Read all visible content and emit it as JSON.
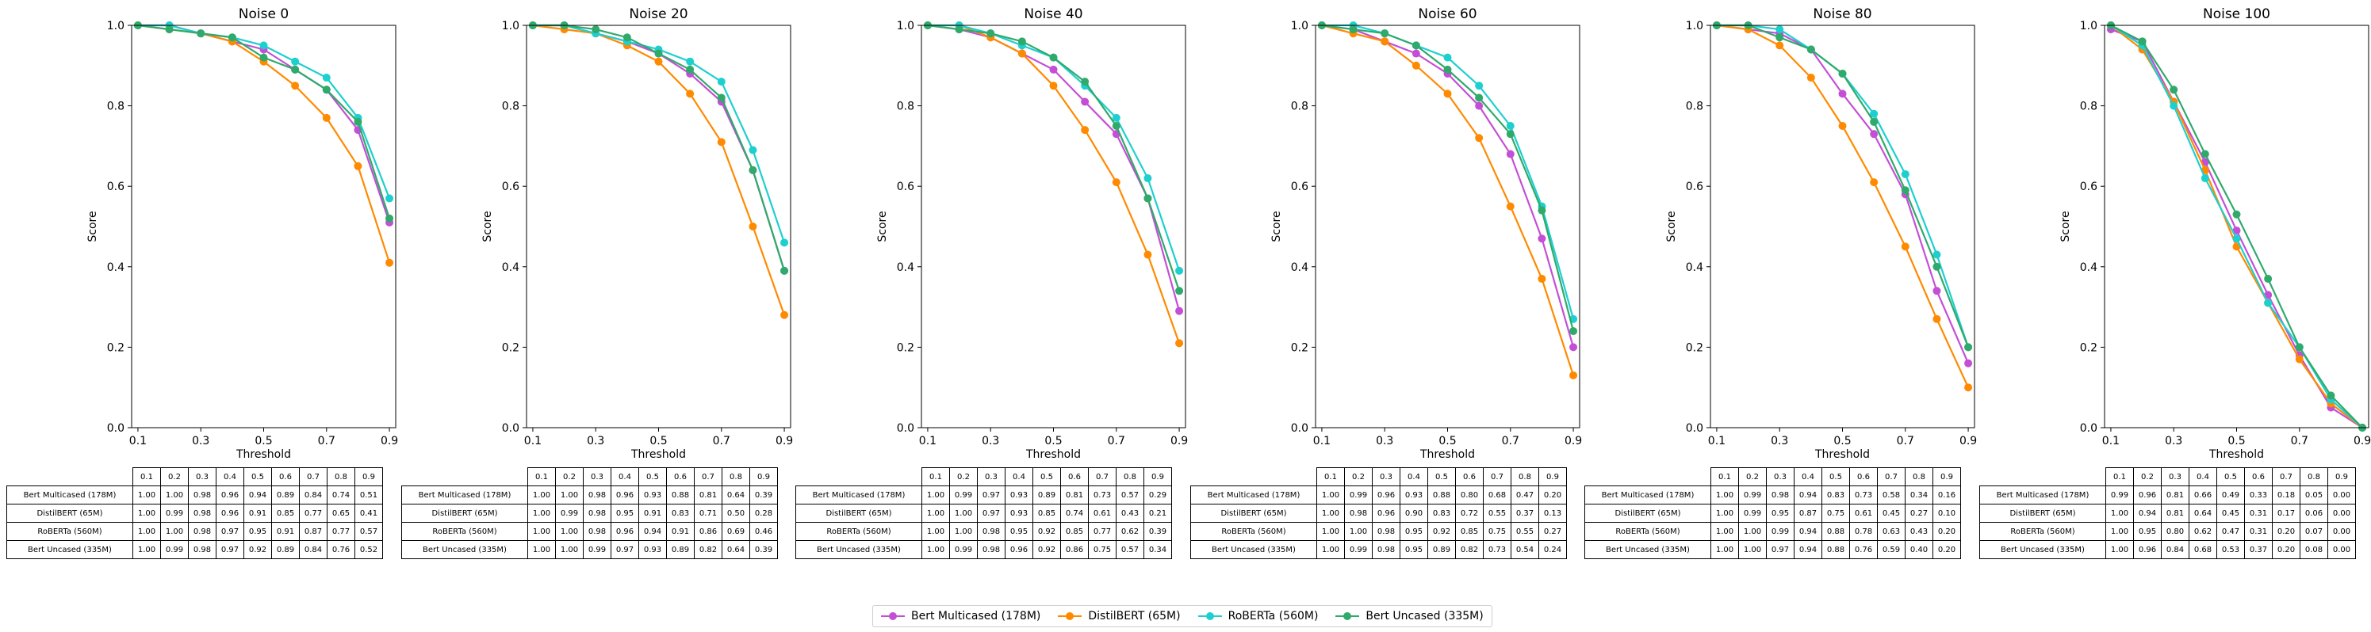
{
  "chart_data": [
    {
      "type": "line",
      "title": "Noise 0",
      "xlabel": "Threshold",
      "ylabel": "Score",
      "x": [
        0.1,
        0.2,
        0.3,
        0.4,
        0.5,
        0.6,
        0.7,
        0.8,
        0.9
      ],
      "xticks": [
        "0.1",
        "0.3",
        "0.5",
        "0.7",
        "0.9"
      ],
      "ylim": [
        0,
        1
      ],
      "yticks": [
        "0.0",
        "0.2",
        "0.4",
        "0.6",
        "0.8",
        "1.0"
      ],
      "series": [
        {
          "name": "Bert Multicased (178M)",
          "values": [
            1.0,
            1.0,
            0.98,
            0.96,
            0.94,
            0.89,
            0.84,
            0.74,
            0.51
          ]
        },
        {
          "name": "DistilBERT (65M)",
          "values": [
            1.0,
            0.99,
            0.98,
            0.96,
            0.91,
            0.85,
            0.77,
            0.65,
            0.41
          ]
        },
        {
          "name": "RoBERTa (560M)",
          "values": [
            1.0,
            1.0,
            0.98,
            0.97,
            0.95,
            0.91,
            0.87,
            0.77,
            0.57
          ]
        },
        {
          "name": "Bert Uncased (335M)",
          "values": [
            1.0,
            0.99,
            0.98,
            0.97,
            0.92,
            0.89,
            0.84,
            0.76,
            0.52
          ]
        }
      ]
    },
    {
      "type": "line",
      "title": "Noise 20",
      "xlabel": "Threshold",
      "ylabel": "Score",
      "x": [
        0.1,
        0.2,
        0.3,
        0.4,
        0.5,
        0.6,
        0.7,
        0.8,
        0.9
      ],
      "xticks": [
        "0.1",
        "0.3",
        "0.5",
        "0.7",
        "0.9"
      ],
      "ylim": [
        0,
        1
      ],
      "yticks": [
        "0.0",
        "0.2",
        "0.4",
        "0.6",
        "0.8",
        "1.0"
      ],
      "series": [
        {
          "name": "Bert Multicased (178M)",
          "values": [
            1.0,
            1.0,
            0.98,
            0.96,
            0.93,
            0.88,
            0.81,
            0.64,
            0.39
          ]
        },
        {
          "name": "DistilBERT (65M)",
          "values": [
            1.0,
            0.99,
            0.98,
            0.95,
            0.91,
            0.83,
            0.71,
            0.5,
            0.28
          ]
        },
        {
          "name": "RoBERTa (560M)",
          "values": [
            1.0,
            1.0,
            0.98,
            0.96,
            0.94,
            0.91,
            0.86,
            0.69,
            0.46
          ]
        },
        {
          "name": "Bert Uncased (335M)",
          "values": [
            1.0,
            1.0,
            0.99,
            0.97,
            0.93,
            0.89,
            0.82,
            0.64,
            0.39
          ]
        }
      ]
    },
    {
      "type": "line",
      "title": "Noise 40",
      "xlabel": "Threshold",
      "ylabel": "Score",
      "x": [
        0.1,
        0.2,
        0.3,
        0.4,
        0.5,
        0.6,
        0.7,
        0.8,
        0.9
      ],
      "xticks": [
        "0.1",
        "0.3",
        "0.5",
        "0.7",
        "0.9"
      ],
      "ylim": [
        0,
        1
      ],
      "yticks": [
        "0.0",
        "0.2",
        "0.4",
        "0.6",
        "0.8",
        "1.0"
      ],
      "series": [
        {
          "name": "Bert Multicased (178M)",
          "values": [
            1.0,
            0.99,
            0.97,
            0.93,
            0.89,
            0.81,
            0.73,
            0.57,
            0.29
          ]
        },
        {
          "name": "DistilBERT (65M)",
          "values": [
            1.0,
            1.0,
            0.97,
            0.93,
            0.85,
            0.74,
            0.61,
            0.43,
            0.21
          ]
        },
        {
          "name": "RoBERTa (560M)",
          "values": [
            1.0,
            1.0,
            0.98,
            0.95,
            0.92,
            0.85,
            0.77,
            0.62,
            0.39
          ]
        },
        {
          "name": "Bert Uncased (335M)",
          "values": [
            1.0,
            0.99,
            0.98,
            0.96,
            0.92,
            0.86,
            0.75,
            0.57,
            0.34
          ]
        }
      ]
    },
    {
      "type": "line",
      "title": "Noise 60",
      "xlabel": "Threshold",
      "ylabel": "Score",
      "x": [
        0.1,
        0.2,
        0.3,
        0.4,
        0.5,
        0.6,
        0.7,
        0.8,
        0.9
      ],
      "xticks": [
        "0.1",
        "0.3",
        "0.5",
        "0.7",
        "0.9"
      ],
      "ylim": [
        0,
        1
      ],
      "yticks": [
        "0.0",
        "0.2",
        "0.4",
        "0.6",
        "0.8",
        "1.0"
      ],
      "series": [
        {
          "name": "Bert Multicased (178M)",
          "values": [
            1.0,
            0.99,
            0.96,
            0.93,
            0.88,
            0.8,
            0.68,
            0.47,
            0.2
          ]
        },
        {
          "name": "DistilBERT (65M)",
          "values": [
            1.0,
            0.98,
            0.96,
            0.9,
            0.83,
            0.72,
            0.55,
            0.37,
            0.13
          ]
        },
        {
          "name": "RoBERTa (560M)",
          "values": [
            1.0,
            1.0,
            0.98,
            0.95,
            0.92,
            0.85,
            0.75,
            0.55,
            0.27
          ]
        },
        {
          "name": "Bert Uncased (335M)",
          "values": [
            1.0,
            0.99,
            0.98,
            0.95,
            0.89,
            0.82,
            0.73,
            0.54,
            0.24
          ]
        }
      ]
    },
    {
      "type": "line",
      "title": "Noise 80",
      "xlabel": "Threshold",
      "ylabel": "Score",
      "x": [
        0.1,
        0.2,
        0.3,
        0.4,
        0.5,
        0.6,
        0.7,
        0.8,
        0.9
      ],
      "xticks": [
        "0.1",
        "0.3",
        "0.5",
        "0.7",
        "0.9"
      ],
      "ylim": [
        0,
        1
      ],
      "yticks": [
        "0.0",
        "0.2",
        "0.4",
        "0.6",
        "0.8",
        "1.0"
      ],
      "series": [
        {
          "name": "Bert Multicased (178M)",
          "values": [
            1.0,
            0.99,
            0.98,
            0.94,
            0.83,
            0.73,
            0.58,
            0.34,
            0.16
          ]
        },
        {
          "name": "DistilBERT (65M)",
          "values": [
            1.0,
            0.99,
            0.95,
            0.87,
            0.75,
            0.61,
            0.45,
            0.27,
            0.1
          ]
        },
        {
          "name": "RoBERTa (560M)",
          "values": [
            1.0,
            1.0,
            0.99,
            0.94,
            0.88,
            0.78,
            0.63,
            0.43,
            0.2
          ]
        },
        {
          "name": "Bert Uncased (335M)",
          "values": [
            1.0,
            1.0,
            0.97,
            0.94,
            0.88,
            0.76,
            0.59,
            0.4,
            0.2
          ]
        }
      ]
    },
    {
      "type": "line",
      "title": "Noise 100",
      "xlabel": "Threshold",
      "ylabel": "Score",
      "x": [
        0.1,
        0.2,
        0.3,
        0.4,
        0.5,
        0.6,
        0.7,
        0.8,
        0.9
      ],
      "xticks": [
        "0.1",
        "0.3",
        "0.5",
        "0.7",
        "0.9"
      ],
      "ylim": [
        0,
        1
      ],
      "yticks": [
        "0.0",
        "0.2",
        "0.4",
        "0.6",
        "0.8",
        "1.0"
      ],
      "series": [
        {
          "name": "Bert Multicased (178M)",
          "values": [
            0.99,
            0.96,
            0.81,
            0.66,
            0.49,
            0.33,
            0.18,
            0.05,
            0.0
          ]
        },
        {
          "name": "DistilBERT (65M)",
          "values": [
            1.0,
            0.94,
            0.81,
            0.64,
            0.45,
            0.31,
            0.17,
            0.06,
            0.0
          ]
        },
        {
          "name": "RoBERTa (560M)",
          "values": [
            1.0,
            0.95,
            0.8,
            0.62,
            0.47,
            0.31,
            0.2,
            0.07,
            0.0
          ]
        },
        {
          "name": "Bert Uncased (335M)",
          "values": [
            1.0,
            0.96,
            0.84,
            0.68,
            0.53,
            0.37,
            0.2,
            0.08,
            0.0
          ]
        }
      ]
    }
  ],
  "table_header": [
    "0.1",
    "0.2",
    "0.3",
    "0.4",
    "0.5",
    "0.6",
    "0.7",
    "0.8",
    "0.9"
  ],
  "legend": {
    "placement": "bottom-center",
    "items": [
      {
        "label": "Bert Multicased (178M)",
        "color": "#c44fd6"
      },
      {
        "label": "DistilBERT (65M)",
        "color": "#ff8a00"
      },
      {
        "label": "RoBERTa (560M)",
        "color": "#1ecfcf"
      },
      {
        "label": "Bert Uncased (335M)",
        "color": "#2faa6b"
      }
    ]
  }
}
